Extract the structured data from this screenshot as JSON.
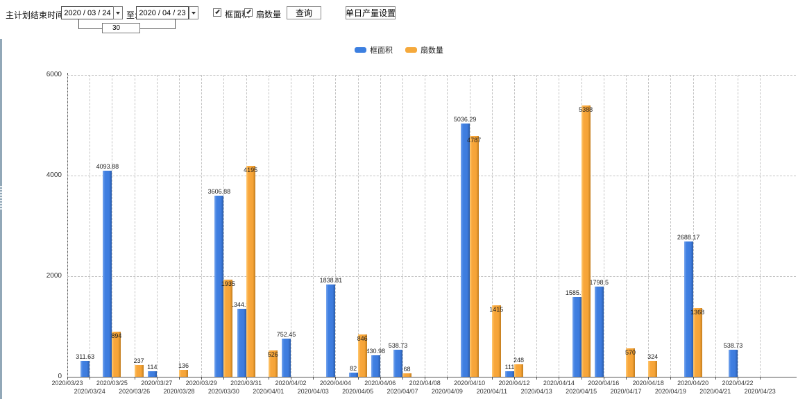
{
  "toolbar": {
    "plan_end_label": "主计划结束时间:",
    "date_from": "2020 / 03 / 24",
    "to_label": "至:",
    "date_to": "2020 / 04 / 23",
    "interval_days": "30",
    "checkbox_frame_area_label": "框面积",
    "checkbox_fan_count_label": "扇数量",
    "checkbox_frame_area_checked": true,
    "checkbox_fan_count_checked": true,
    "query_button_label": "查询",
    "daily_output_button_label": "单日产量设置"
  },
  "icons": {
    "dropdown_arrow": "triangle-down",
    "checkbox_check": "check-mark",
    "splitter_grip": "dotted-grip"
  },
  "colors": {
    "series_frame_area": "#3d7bdd",
    "series_fan_count": "#f5a336",
    "legend_frame_area_swatch": "#3c7fe0",
    "legend_fan_count_swatch": "#f5a93c",
    "axis": "#555555",
    "gridline": "#c3c3c3",
    "splitter": "#92a8b8"
  },
  "chart_data": {
    "type": "bar",
    "title": "",
    "xlabel": "",
    "ylabel": "",
    "ylim": [
      0,
      6000
    ],
    "yticks": [
      0,
      2000,
      4000,
      6000
    ],
    "grid": true,
    "legend_position": "top",
    "categories": [
      "2020/03/23",
      "2020/03/24",
      "2020/03/25",
      "2020/03/26",
      "2020/03/27",
      "2020/03/28",
      "2020/03/29",
      "2020/03/30",
      "2020/03/31",
      "2020/04/01",
      "2020/04/02",
      "2020/04/03",
      "2020/04/04",
      "2020/04/05",
      "2020/04/06",
      "2020/04/07",
      "2020/04/08",
      "2020/04/09",
      "2020/04/10",
      "2020/04/11",
      "2020/04/12",
      "2020/04/13",
      "2020/04/14",
      "2020/04/15",
      "2020/04/16",
      "2020/04/17",
      "2020/04/18",
      "2020/04/19",
      "2020/04/20",
      "2020/04/21",
      "2020/04/22",
      "2020/04/23"
    ],
    "series": [
      {
        "name": "框面积",
        "color": "#3d7bdd",
        "values": [
          null,
          311.63,
          4093.88,
          null,
          114,
          null,
          null,
          3606.88,
          1344.95,
          null,
          752.45,
          null,
          1838.81,
          82,
          430.98,
          538.73,
          null,
          null,
          5036.29,
          null,
          111,
          null,
          null,
          1585.96,
          1798.5,
          null,
          null,
          null,
          2688.17,
          null,
          538.73,
          null
        ]
      },
      {
        "name": "扇数量",
        "color": "#f5a336",
        "values": [
          null,
          null,
          894,
          237,
          null,
          136,
          null,
          1935,
          4195,
          526,
          null,
          null,
          null,
          846,
          null,
          68,
          null,
          null,
          4787,
          1415,
          248,
          null,
          null,
          5388,
          null,
          570,
          324,
          null,
          1368,
          null,
          null,
          null
        ]
      }
    ]
  }
}
